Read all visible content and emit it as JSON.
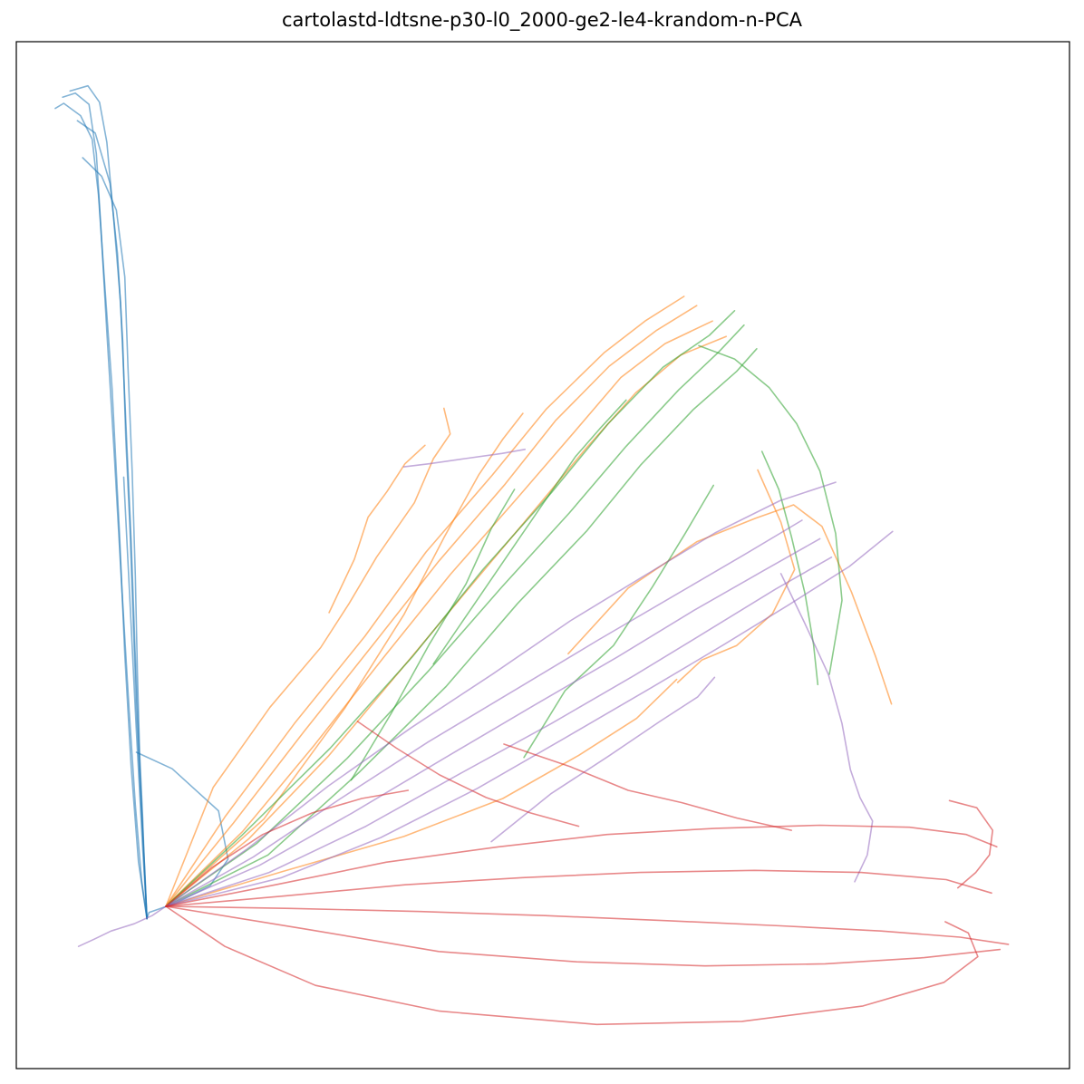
{
  "chart_data": {
    "type": "line",
    "title": "cartolastd-ldtsne-p30-l0_2000-ge2-le4-krandom-n-PCA",
    "xlabel": "",
    "ylabel": "",
    "xlim": [
      0,
      100
    ],
    "ylim": [
      0,
      100
    ],
    "grid": false,
    "axis_ticks": false,
    "legend": "none",
    "series": [
      {
        "color": "#1f77b4",
        "x": [
          3.7,
          4.5,
          6.1,
          7.2,
          7.8,
          8.3,
          9.1,
          9.8,
          10.3,
          10.9,
          11.6,
          12.4
        ],
        "y": [
          93.5,
          94.0,
          92.8,
          90.5,
          85.1,
          77.8,
          66.2,
          52.0,
          40.3,
          29.4,
          20.1,
          14.6
        ]
      },
      {
        "color": "#1f77b4",
        "x": [
          4.4,
          5.6,
          6.9,
          7.6,
          8.0,
          8.6,
          9.3,
          10.0,
          10.7,
          11.3,
          11.9,
          12.4
        ],
        "y": [
          94.6,
          95.0,
          93.9,
          89.1,
          82.4,
          71.7,
          59.8,
          47.1,
          35.2,
          25.7,
          18.3,
          14.6
        ]
      },
      {
        "color": "#1f77b4",
        "x": [
          5.1,
          6.8,
          7.9,
          8.6,
          9.2,
          9.9,
          10.4,
          10.9,
          11.3,
          11.7,
          12.1,
          12.4
        ],
        "y": [
          95.2,
          95.7,
          94.1,
          90.2,
          83.3,
          74.6,
          63.1,
          51.4,
          40.2,
          29.8,
          20.9,
          14.6
        ]
      },
      {
        "color": "#1f77b4",
        "x": [
          5.8,
          7.5,
          8.9,
          9.6,
          10.1,
          10.4,
          10.8,
          11.1,
          11.4,
          11.8,
          12.2,
          12.4
        ],
        "y": [
          92.3,
          91.1,
          86.2,
          79.4,
          70.8,
          61.3,
          52.4,
          43.6,
          35.1,
          26.8,
          19.3,
          14.6
        ]
      },
      {
        "color": "#1f77b4",
        "x": [
          6.3,
          8.1,
          9.5,
          10.3,
          10.6,
          11.0,
          11.3,
          11.5,
          11.7,
          12.0,
          12.2,
          12.4
        ],
        "y": [
          88.7,
          86.9,
          83.6,
          77.1,
          68.3,
          58.2,
          48.0,
          38.6,
          30.9,
          24.4,
          18.7,
          14.6
        ]
      },
      {
        "color": "#1f77b4",
        "x": [
          11.4,
          14.8,
          19.2,
          20.1,
          18.4,
          15.1,
          12.6,
          12.4
        ],
        "y": [
          30.8,
          29.2,
          25.1,
          20.4,
          17.8,
          16.1,
          15.2,
          14.6
        ]
      },
      {
        "color": "#1f77b4",
        "x": [
          10.2,
          10.8,
          11.4,
          12.0,
          12.4
        ],
        "y": [
          57.6,
          45.3,
          32.8,
          21.5,
          14.6
        ]
      },
      {
        "color": "#ff7f0e",
        "x": [
          14.2,
          19.8,
          26.4,
          33.1,
          38.9,
          45.2,
          50.3,
          55.8,
          59.7,
          63.4
        ],
        "y": [
          15.8,
          24.5,
          33.6,
          42.1,
          50.3,
          57.8,
          64.2,
          69.7,
          72.8,
          75.2
        ]
      },
      {
        "color": "#ff7f0e",
        "x": [
          14.2,
          20.6,
          27.3,
          34.2,
          40.1,
          46.4,
          51.2,
          56.3,
          60.8,
          64.6
        ],
        "y": [
          15.8,
          23.9,
          32.8,
          41.7,
          49.4,
          56.9,
          63.1,
          68.4,
          71.9,
          74.3
        ]
      },
      {
        "color": "#ff7f0e",
        "x": [
          14.2,
          21.5,
          28.3,
          35.0,
          41.2,
          47.6,
          52.9,
          57.4,
          61.6,
          66.1
        ],
        "y": [
          15.8,
          23.1,
          31.5,
          40.2,
          48.1,
          55.6,
          61.9,
          67.3,
          70.6,
          72.8
        ]
      },
      {
        "color": "#ff7f0e",
        "x": [
          14.2,
          22.1,
          29.6,
          36.4,
          42.5,
          48.8,
          54.1,
          58.8,
          63.1,
          67.4
        ],
        "y": [
          15.8,
          22.4,
          30.4,
          38.7,
          46.2,
          53.9,
          60.4,
          65.8,
          69.5,
          71.3
        ]
      },
      {
        "color": "#ff7f0e",
        "x": [
          14.2,
          18.7,
          24.1,
          28.9,
          31.6,
          34.2,
          37.8,
          39.6,
          41.2,
          40.6
        ],
        "y": [
          15.8,
          27.4,
          35.2,
          41.0,
          45.3,
          49.8,
          55.1,
          59.4,
          61.8,
          64.3
        ]
      },
      {
        "color": "#ff7f0e",
        "x": [
          14.2,
          23.5,
          31.2,
          36.8,
          40.6,
          43.9,
          46.2,
          48.1
        ],
        "y": [
          15.8,
          24.3,
          35.1,
          44.2,
          51.7,
          57.8,
          61.3,
          63.8
        ]
      },
      {
        "color": "#ff7f0e",
        "x": [
          52.4,
          58.1,
          64.6,
          70.2,
          73.8,
          76.5,
          79.3,
          81.6,
          83.1
        ],
        "y": [
          40.4,
          46.8,
          51.3,
          53.6,
          54.9,
          52.8,
          46.4,
          40.1,
          35.5
        ]
      },
      {
        "color": "#ff7f0e",
        "x": [
          14.2,
          25.3,
          36.8,
          46.2,
          53.4,
          58.9,
          62.7
        ],
        "y": [
          15.8,
          19.2,
          22.6,
          26.3,
          30.5,
          34.1,
          37.9
        ]
      },
      {
        "color": "#ff7f0e",
        "x": [
          29.7,
          32.1,
          33.4,
          35.2,
          36.9,
          38.8
        ],
        "y": [
          44.4,
          49.6,
          53.7,
          56.2,
          58.9,
          60.7
        ]
      },
      {
        "color": "#ff7f0e",
        "x": [
          70.4,
          72.6,
          73.9,
          71.8,
          68.4,
          65.1,
          62.8
        ],
        "y": [
          58.3,
          53.2,
          48.6,
          44.3,
          41.2,
          39.8,
          37.6
        ]
      },
      {
        "color": "#2ca02c",
        "x": [
          14.2,
          21.4,
          29.8,
          37.6,
          44.3,
          50.9,
          56.2,
          61.4,
          65.8,
          68.2
        ],
        "y": [
          15.8,
          22.7,
          31.2,
          40.1,
          48.6,
          56.2,
          62.8,
          68.3,
          71.4,
          73.8
        ]
      },
      {
        "color": "#2ca02c",
        "x": [
          14.2,
          22.8,
          31.4,
          39.2,
          46.1,
          52.5,
          57.9,
          62.9,
          66.7,
          69.1
        ],
        "y": [
          15.8,
          21.9,
          30.2,
          38.8,
          46.9,
          54.1,
          60.6,
          66.1,
          69.8,
          72.4
        ]
      },
      {
        "color": "#2ca02c",
        "x": [
          14.2,
          23.9,
          32.6,
          40.8,
          47.6,
          54.2,
          59.3,
          64.3,
          68.4,
          70.3
        ],
        "y": [
          15.8,
          20.8,
          28.9,
          37.2,
          45.3,
          52.4,
          58.8,
          64.2,
          67.9,
          70.1
        ]
      },
      {
        "color": "#2ca02c",
        "x": [
          64.8,
          68.2,
          71.5,
          74.1,
          76.3,
          77.8,
          78.4,
          77.2
        ],
        "y": [
          70.4,
          69.1,
          66.3,
          62.8,
          58.2,
          52.1,
          45.6,
          38.4
        ]
      },
      {
        "color": "#2ca02c",
        "x": [
          39.6,
          43.2,
          47.8,
          50.6,
          53.1,
          55.4,
          57.9
        ],
        "y": [
          39.4,
          44.8,
          51.7,
          55.9,
          59.6,
          62.3,
          65.1
        ]
      },
      {
        "color": "#2ca02c",
        "x": [
          70.8,
          72.4,
          73.6,
          74.9,
          75.7,
          76.1
        ],
        "y": [
          60.1,
          56.4,
          51.8,
          46.2,
          41.3,
          37.4
        ]
      },
      {
        "color": "#2ca02c",
        "x": [
          48.2,
          52.1,
          56.7,
          60.4,
          63.5,
          66.2
        ],
        "y": [
          30.3,
          36.8,
          41.2,
          46.9,
          52.1,
          56.8
        ]
      },
      {
        "color": "#2ca02c",
        "x": [
          31.8,
          35.6,
          39.2,
          42.7,
          45.1,
          47.3
        ],
        "y": [
          28.1,
          34.6,
          41.3,
          47.2,
          52.6,
          56.4
        ]
      },
      {
        "color": "#9467bd",
        "x": [
          14.2,
          21.8,
          29.6,
          37.5,
          45.2,
          52.6,
          59.8,
          66.4,
          72.5,
          77.8
        ],
        "y": [
          15.8,
          21.3,
          27.5,
          33.2,
          38.4,
          43.6,
          48.1,
          52.2,
          55.3,
          57.1
        ]
      },
      {
        "color": "#9467bd",
        "x": [
          14.2,
          22.5,
          30.8,
          39.1,
          47.4,
          55.2,
          62.7,
          69.2,
          74.6
        ],
        "y": [
          15.8,
          20.6,
          26.3,
          31.8,
          36.9,
          41.7,
          46.2,
          50.1,
          53.4
        ]
      },
      {
        "color": "#9467bd",
        "x": [
          14.2,
          23.1,
          31.9,
          40.6,
          49.2,
          57.1,
          64.3,
          70.8,
          76.3
        ],
        "y": [
          15.8,
          19.8,
          24.9,
          30.2,
          35.4,
          40.1,
          44.6,
          48.4,
          51.6
        ]
      },
      {
        "color": "#9467bd",
        "x": [
          14.2,
          24.0,
          33.2,
          42.1,
          50.8,
          58.7,
          65.9,
          72.1,
          77.4
        ],
        "y": [
          15.8,
          19.1,
          23.6,
          28.7,
          33.6,
          38.3,
          42.8,
          46.7,
          49.8
        ]
      },
      {
        "color": "#9467bd",
        "x": [
          14.2,
          12.9,
          11.2,
          9.0,
          7.4,
          5.9
        ],
        "y": [
          15.8,
          14.9,
          14.1,
          13.4,
          12.6,
          11.9
        ]
      },
      {
        "color": "#9467bd",
        "x": [
          72.6,
          74.8,
          77.1,
          78.4,
          79.2,
          80.1,
          81.3,
          80.8,
          79.6
        ],
        "y": [
          48.2,
          43.5,
          38.4,
          33.6,
          29.1,
          26.4,
          24.1,
          20.8,
          18.2
        ]
      },
      {
        "color": "#9467bd",
        "x": [
          14.2,
          25.2,
          34.6,
          43.8,
          52.1,
          60.3,
          67.2,
          73.4,
          79.1,
          83.2
        ],
        "y": [
          15.8,
          18.6,
          22.5,
          27.3,
          32.2,
          37.1,
          41.3,
          45.2,
          48.9,
          52.3
        ]
      },
      {
        "color": "#9467bd",
        "x": [
          36.8,
          39.2,
          42.6,
          46.1,
          48.3
        ],
        "y": [
          58.6,
          58.9,
          59.4,
          59.9,
          60.3
        ]
      },
      {
        "color": "#9467bd",
        "x": [
          45.1,
          50.8,
          56.2,
          61.1,
          64.7,
          66.3
        ],
        "y": [
          22.1,
          26.8,
          30.4,
          33.8,
          36.2,
          38.1
        ]
      },
      {
        "color": "#d62728",
        "x": [
          14.2,
          24.6,
          35.1,
          45.8,
          56.1,
          66.4,
          76.3,
          84.8,
          90.2,
          93.1
        ],
        "y": [
          15.8,
          17.9,
          20.1,
          21.6,
          22.8,
          23.4,
          23.7,
          23.5,
          22.8,
          21.6
        ]
      },
      {
        "color": "#d62728",
        "x": [
          14.2,
          25.3,
          36.9,
          48.1,
          59.2,
          70.1,
          80.2,
          88.3,
          92.6
        ],
        "y": [
          15.8,
          16.8,
          17.9,
          18.6,
          19.1,
          19.3,
          19.1,
          18.4,
          17.1
        ]
      },
      {
        "color": "#d62728",
        "x": [
          14.2,
          26.1,
          38.4,
          50.2,
          61.8,
          72.6,
          82.1,
          89.6,
          94.2
        ],
        "y": [
          15.8,
          15.6,
          15.3,
          14.9,
          14.4,
          13.9,
          13.4,
          12.8,
          12.1
        ]
      },
      {
        "color": "#d62728",
        "x": [
          14.2,
          19.8,
          28.4,
          40.2,
          55.1,
          68.9,
          80.4,
          88.1,
          91.3,
          90.4,
          88.2
        ],
        "y": [
          15.8,
          11.9,
          8.1,
          5.6,
          4.3,
          4.6,
          6.1,
          8.4,
          10.9,
          13.2,
          14.3
        ]
      },
      {
        "color": "#d62728",
        "x": [
          14.2,
          27.4,
          40.1,
          53.2,
          65.4,
          76.8,
          86.2,
          93.4
        ],
        "y": [
          15.8,
          13.6,
          11.4,
          10.4,
          10.0,
          10.2,
          10.8,
          11.6
        ]
      },
      {
        "color": "#d62728",
        "x": [
          88.6,
          91.2,
          92.7,
          92.4,
          91.1,
          89.4
        ],
        "y": [
          26.1,
          25.4,
          23.2,
          20.8,
          19.1,
          17.6
        ]
      },
      {
        "color": "#d62728",
        "x": [
          32.4,
          36.1,
          40.2,
          44.6,
          48.8,
          53.4
        ],
        "y": [
          33.8,
          31.2,
          28.6,
          26.4,
          24.9,
          23.6
        ]
      },
      {
        "color": "#d62728",
        "x": [
          46.3,
          52.6,
          58.1,
          63.2,
          68.4,
          73.6
        ],
        "y": [
          31.6,
          29.4,
          27.1,
          25.9,
          24.4,
          23.2
        ]
      },
      {
        "color": "#d62728",
        "x": [
          14.2,
          18.6,
          23.4,
          28.1,
          32.8,
          37.2
        ],
        "y": [
          15.8,
          19.6,
          22.8,
          24.9,
          26.3,
          27.1
        ]
      }
    ]
  }
}
